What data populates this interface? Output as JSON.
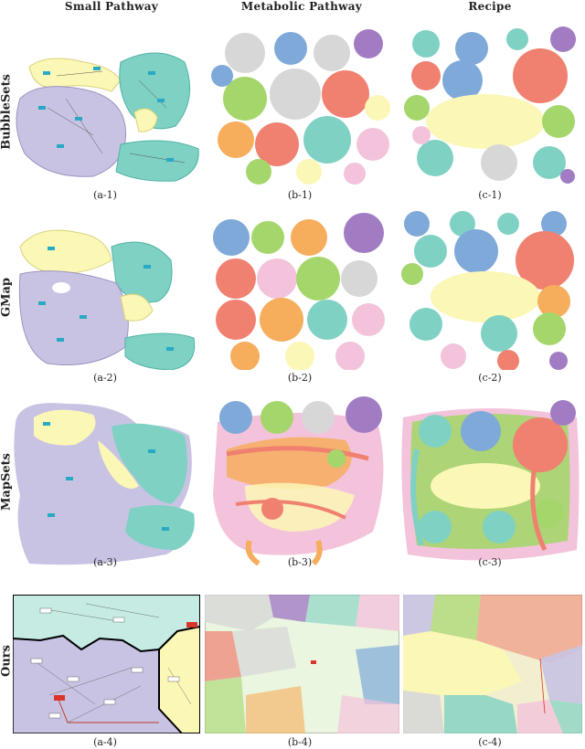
{
  "columns": [
    "Small Pathway",
    "Metabolic Pathway",
    "Recipe"
  ],
  "rows": [
    "BubbleSets",
    "GMap",
    "MapSets",
    "Ours"
  ],
  "panel_labels": [
    [
      "(a-1)",
      "(b-1)",
      "(c-1)"
    ],
    [
      "(a-2)",
      "(b-2)",
      "(c-2)"
    ],
    [
      "(a-3)",
      "(b-3)",
      "(c-3)"
    ],
    [
      "(a-4)",
      "(b-4)",
      "(c-4)"
    ]
  ],
  "palette": {
    "lavender": "#c9c3e3",
    "teal": "#7fd1c3",
    "yellow": "#fbf7b6",
    "salmon": "#f08070",
    "orange": "#f6ad5c",
    "green": "#a5d66b",
    "blue": "#7fa9d8",
    "pink": "#f3c3dc",
    "purple": "#a27cc3",
    "gray": "#d7d7d7",
    "node": "#2aa9c4"
  }
}
